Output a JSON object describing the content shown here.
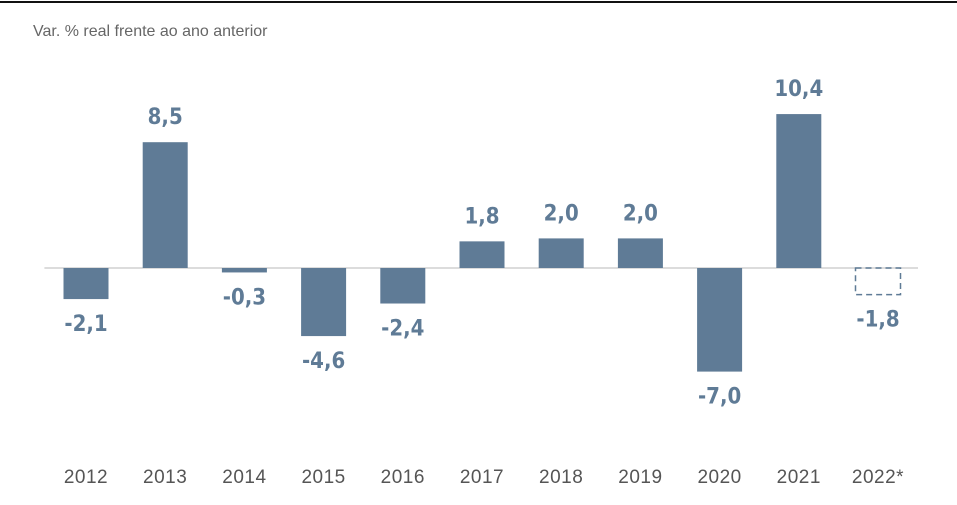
{
  "chart_data": {
    "type": "bar",
    "subtitle": "Var. % real frente ao ano anterior",
    "categories": [
      "2012",
      "2013",
      "2014",
      "2015",
      "2016",
      "2017",
      "2018",
      "2019",
      "2020",
      "2021",
      "2022*"
    ],
    "values": [
      -2.1,
      8.5,
      -0.3,
      -4.6,
      -2.4,
      1.8,
      2.0,
      2.0,
      -7.0,
      10.4,
      -1.8
    ],
    "value_labels": [
      "-2,1",
      "8,5",
      "-0,3",
      "-4,6",
      "-2,4",
      "1,8",
      "2,0",
      "2,0",
      "-7,0",
      "10,4",
      "-1,8"
    ],
    "bar_styles": [
      "solid",
      "solid",
      "solid",
      "solid",
      "solid",
      "solid",
      "solid",
      "solid",
      "solid",
      "solid",
      "dashed"
    ],
    "color": "#5f7b96",
    "ylim": [
      -9,
      12
    ]
  }
}
